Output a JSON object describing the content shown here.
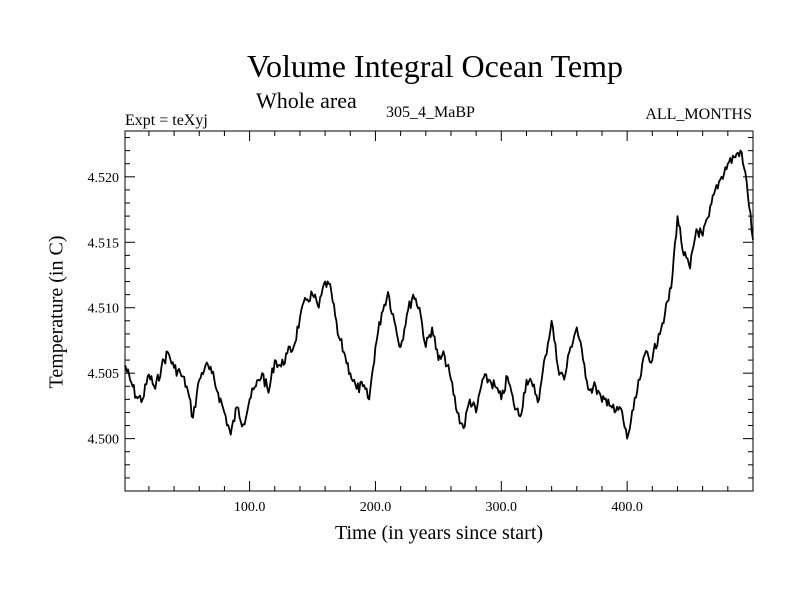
{
  "chart_data": {
    "type": "line",
    "title": "Volume Integral Ocean Temp",
    "subtitle": "Whole area",
    "annotations": {
      "left": "Expt = teXyj",
      "center": "305_4_MaBP",
      "right": "ALL_MONTHS"
    },
    "xlabel": "Time (in years since start)",
    "ylabel": "Temperature (in C)",
    "xlim": [
      1,
      500
    ],
    "ylim": [
      4.496,
      4.5235
    ],
    "xticks": [
      100,
      200,
      300,
      400
    ],
    "xtick_labels": [
      "100.0",
      "200.0",
      "300.0",
      "400.0"
    ],
    "yticks": [
      4.5,
      4.505,
      4.51,
      4.515,
      4.52
    ],
    "ytick_labels": [
      "4.500",
      "4.505",
      "4.510",
      "4.515",
      "4.520"
    ],
    "grid": false,
    "series": [
      {
        "x": [
          1,
          5,
          10,
          15,
          20,
          25,
          30,
          35,
          40,
          45,
          50,
          55,
          60,
          65,
          70,
          75,
          80,
          85,
          90,
          95,
          100,
          105,
          110,
          115,
          120,
          125,
          130,
          135,
          140,
          145,
          150,
          155,
          160,
          165,
          170,
          175,
          180,
          185,
          190,
          195,
          200,
          205,
          210,
          215,
          220,
          225,
          230,
          235,
          240,
          245,
          250,
          255,
          260,
          265,
          270,
          275,
          280,
          285,
          290,
          295,
          300,
          305,
          310,
          315,
          320,
          325,
          330,
          335,
          340,
          345,
          350,
          355,
          360,
          365,
          370,
          375,
          380,
          385,
          390,
          395,
          400,
          405,
          410,
          415,
          420,
          425,
          430,
          435,
          440,
          445,
          450,
          455,
          460,
          465,
          470,
          475,
          480,
          485,
          490,
          495,
          500
        ],
        "values": [
          4.5056,
          4.5045,
          4.5032,
          4.503,
          4.5049,
          4.5038,
          4.5055,
          4.5066,
          4.5054,
          4.505,
          4.504,
          4.5016,
          4.5045,
          4.5056,
          4.505,
          4.5035,
          4.502,
          4.5003,
          4.5024,
          4.5011,
          4.503,
          4.504,
          4.505,
          4.5035,
          4.506,
          4.5055,
          4.5065,
          4.507,
          4.5092,
          4.5106,
          4.511,
          4.51,
          4.512,
          4.5112,
          4.508,
          4.5066,
          4.505,
          4.5038,
          4.504,
          4.503,
          4.507,
          4.5096,
          4.5112,
          4.509,
          4.507,
          4.5095,
          4.511,
          4.51,
          4.507,
          4.5085,
          4.506,
          4.5063,
          4.5045,
          4.502,
          4.5008,
          4.503,
          4.502,
          4.5045,
          4.5045,
          4.504,
          4.503,
          4.5047,
          4.5026,
          4.5017,
          4.5045,
          4.504,
          4.503,
          4.5063,
          4.509,
          4.5055,
          4.5045,
          4.507,
          4.5085,
          4.506,
          4.5037,
          4.504,
          4.5028,
          4.503,
          4.502,
          4.5023,
          4.5,
          4.5022,
          4.5045,
          4.5067,
          4.506,
          4.508,
          4.5095,
          4.5115,
          4.517,
          4.514,
          4.513,
          4.516,
          4.5155,
          4.517,
          4.519,
          4.52,
          4.521,
          4.5215,
          4.522,
          4.5196,
          4.5152
        ]
      }
    ]
  }
}
